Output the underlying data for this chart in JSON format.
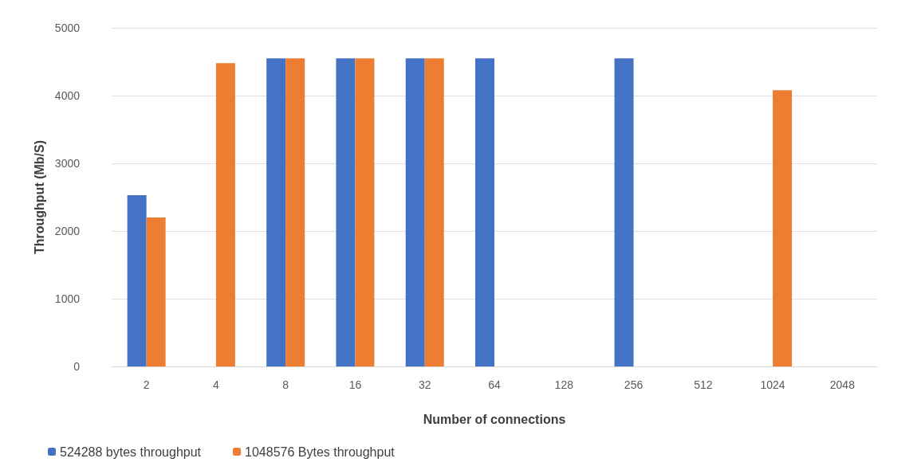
{
  "chart_data": {
    "type": "bar",
    "xlabel": "Number of connections",
    "ylabel": "Throughput (Mb/S)",
    "categories": [
      "2",
      "4",
      "8",
      "16",
      "32",
      "64",
      "128",
      "256",
      "512",
      "1024",
      "2048"
    ],
    "series": [
      {
        "name": "524288 bytes throughput",
        "color": "#4472c4",
        "values": [
          2530,
          0,
          4550,
          4550,
          4550,
          4550,
          0,
          4550,
          0,
          0,
          0
        ]
      },
      {
        "name": "1048576 Bytes throughput",
        "color": "#ed7d31",
        "values": [
          2200,
          4480,
          4550,
          4550,
          4550,
          0,
          0,
          0,
          0,
          4080,
          0
        ]
      }
    ],
    "ylim": [
      0,
      5000
    ],
    "yticks": [
      0,
      1000,
      2000,
      3000,
      4000,
      5000
    ],
    "grid": "y",
    "legend": "bottom left"
  }
}
